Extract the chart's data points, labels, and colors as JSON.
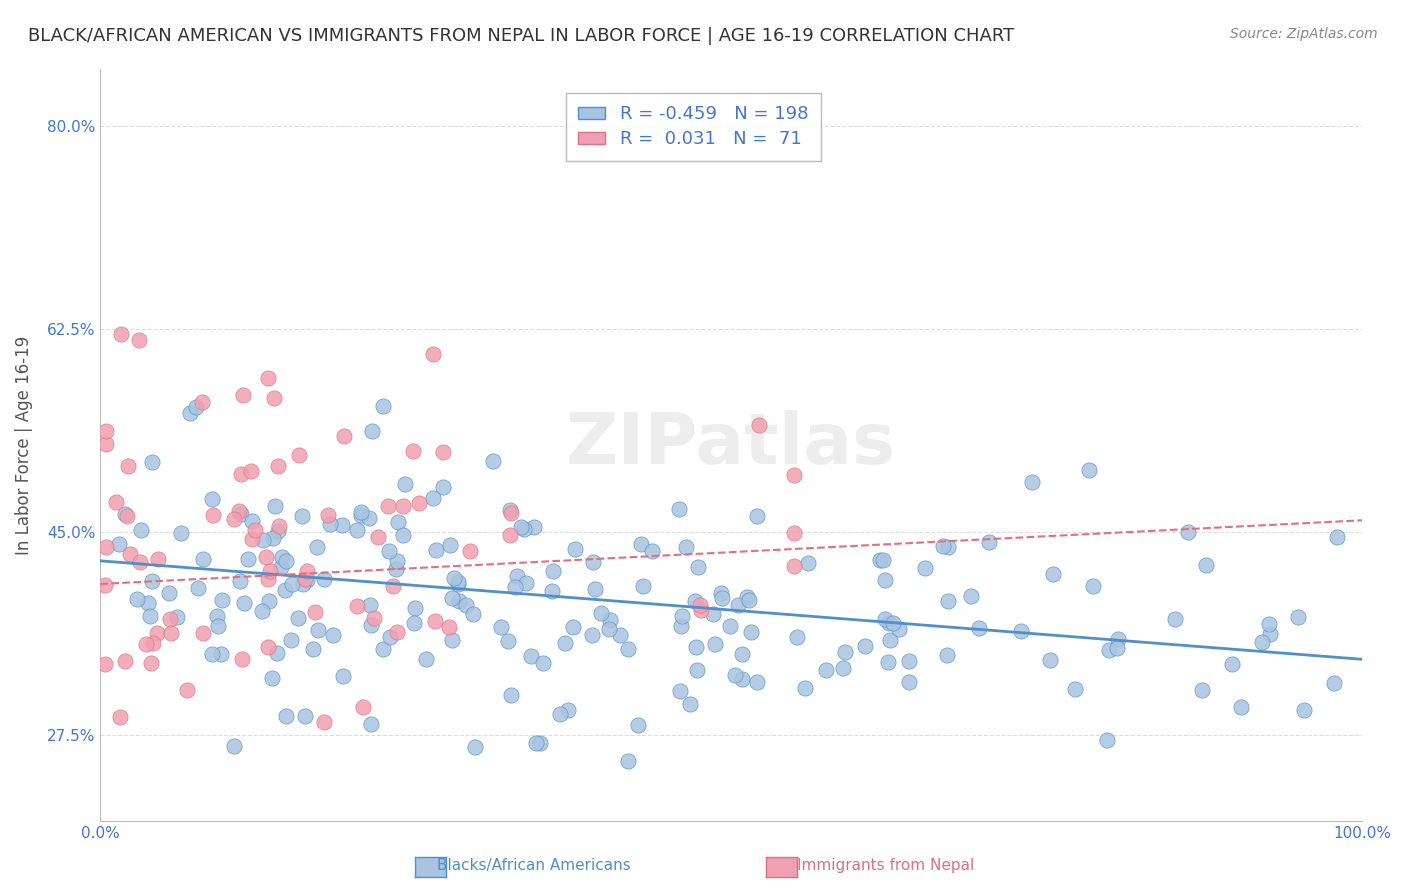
{
  "title": "BLACK/AFRICAN AMERICAN VS IMMIGRANTS FROM NEPAL IN LABOR FORCE | AGE 16-19 CORRELATION CHART",
  "source": "Source: ZipAtlas.com",
  "ylabel": "In Labor Force | Age 16-19",
  "yticks": [
    0.275,
    0.45,
    0.625,
    0.8
  ],
  "ytick_labels": [
    "27.5%",
    "45.0%",
    "62.5%",
    "80.0%"
  ],
  "xlim": [
    0.0,
    1.0
  ],
  "ylim": [
    0.2,
    0.85
  ],
  "blue_R": -0.459,
  "blue_N": 198,
  "pink_R": 0.031,
  "pink_N": 71,
  "blue_color": "#a8c4e0",
  "pink_color": "#f0a0b0",
  "blue_line_color": "#5090c8",
  "pink_line_color": "#e07080",
  "legend_label_blue": "Blacks/African Americans",
  "legend_label_pink": "Immigrants from Nepal",
  "watermark": "ZIPatlas",
  "background_color": "#ffffff",
  "grid_color": "#dddddd",
  "title_color": "#333333",
  "source_color": "#888888",
  "stat_color": "#4477cc",
  "blue_intercept": 0.425,
  "blue_slope": -0.085,
  "pink_intercept": 0.405,
  "pink_slope": 0.055
}
